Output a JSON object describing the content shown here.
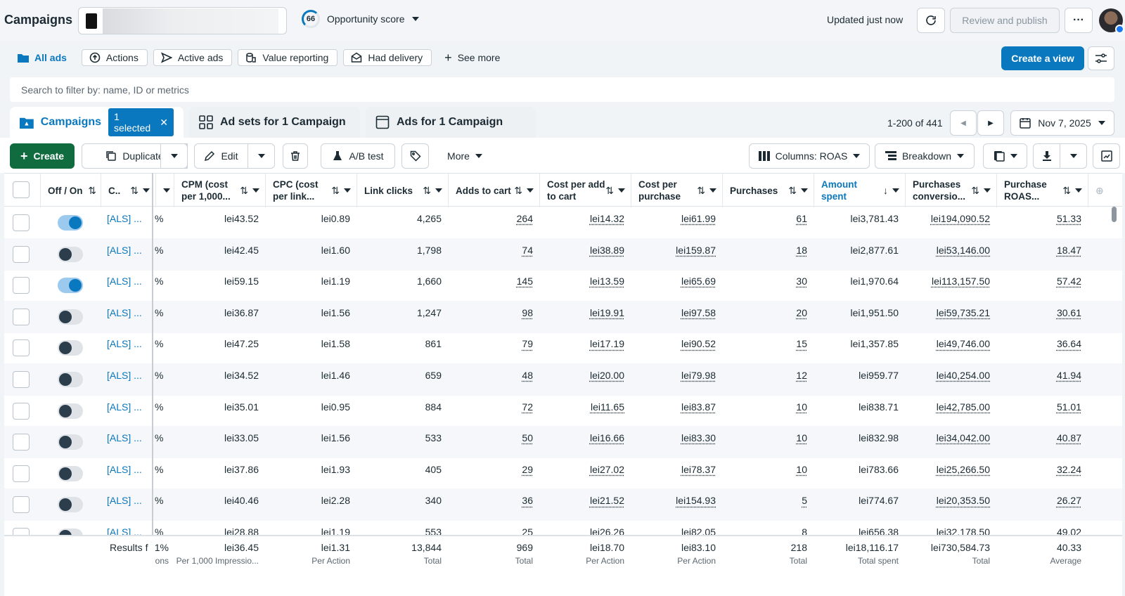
{
  "app": {
    "title": "Campaigns",
    "opportunity_score": "66",
    "opportunity_label": "Opportunity score",
    "updated": "Updated just now",
    "review_label": "Review and publish",
    "more_label": "···"
  },
  "views": {
    "items": [
      {
        "label": "All ads",
        "icon": "folder-icon",
        "active": true
      },
      {
        "label": "Actions",
        "icon": "arrow-up-circle-icon"
      },
      {
        "label": "Active ads",
        "icon": "send-icon"
      },
      {
        "label": "Value reporting",
        "icon": "coins-icon"
      },
      {
        "label": "Had delivery",
        "icon": "envelope-icon"
      }
    ],
    "see_more": "See more",
    "create_view": "Create a view"
  },
  "search": {
    "placeholder": "Search to filter by: name, ID or metrics"
  },
  "tabs": {
    "campaigns": "Campaigns",
    "selected": "1 selected",
    "ad_sets": "Ad sets for 1 Campaign",
    "ads": "Ads for 1 Campaign"
  },
  "pager": {
    "range": "1-200 of 441",
    "date": "Nov 7, 2025"
  },
  "toolbar": {
    "create": "Create",
    "duplicate": "Duplicate",
    "edit": "Edit",
    "ab_test": "A/B test",
    "more": "More",
    "columns": "Columns: ROAS",
    "breakdown": "Breakdown"
  },
  "columns": {
    "off_on": "Off / On",
    "name": "C..",
    "cpm": "CPM (cost per 1,000...",
    "cpc": "CPC (cost per link...",
    "link_clicks": "Link clicks",
    "adds_to_cart": "Adds to cart",
    "cost_per_atc": "Cost per add to cart",
    "cost_per_purchase": "Cost per purchase",
    "purchases": "Purchases",
    "amount_spent": "Amount spent",
    "purchase_conv": "Purchases conversio...",
    "roas": "Purchase ROAS..."
  },
  "rows": [
    {
      "on": true,
      "name": "[ALS] ...",
      "pct": "%",
      "cpm": "lei43.52",
      "cpc": "lei0.89",
      "clicks": "4,265",
      "atc": "264",
      "cpatc": "lei14.32",
      "cpp": "lei61.99",
      "purch": "61",
      "spent": "lei3,781.43",
      "conv": "lei194,090.52",
      "roas": "51.33"
    },
    {
      "on": false,
      "name": "[ALS] ...",
      "pct": "%",
      "cpm": "lei42.45",
      "cpc": "lei1.60",
      "clicks": "1,798",
      "atc": "74",
      "cpatc": "lei38.89",
      "cpp": "lei159.87",
      "purch": "18",
      "spent": "lei2,877.61",
      "conv": "lei53,146.00",
      "roas": "18.47"
    },
    {
      "on": true,
      "name": "[ALS] ...",
      "pct": "%",
      "cpm": "lei59.15",
      "cpc": "lei1.19",
      "clicks": "1,660",
      "atc": "145",
      "cpatc": "lei13.59",
      "cpp": "lei65.69",
      "purch": "30",
      "spent": "lei1,970.64",
      "conv": "lei113,157.50",
      "roas": "57.42"
    },
    {
      "on": false,
      "name": "[ALS] ...",
      "pct": "%",
      "cpm": "lei36.87",
      "cpc": "lei1.56",
      "clicks": "1,247",
      "atc": "98",
      "cpatc": "lei19.91",
      "cpp": "lei97.58",
      "purch": "20",
      "spent": "lei1,951.50",
      "conv": "lei59,735.21",
      "roas": "30.61"
    },
    {
      "on": false,
      "name": "[ALS] ...",
      "pct": "%",
      "cpm": "lei47.25",
      "cpc": "lei1.58",
      "clicks": "861",
      "atc": "79",
      "cpatc": "lei17.19",
      "cpp": "lei90.52",
      "purch": "15",
      "spent": "lei1,357.85",
      "conv": "lei49,746.00",
      "roas": "36.64"
    },
    {
      "on": false,
      "name": "[ALS] ...",
      "pct": "%",
      "cpm": "lei34.52",
      "cpc": "lei1.46",
      "clicks": "659",
      "atc": "48",
      "cpatc": "lei20.00",
      "cpp": "lei79.98",
      "purch": "12",
      "spent": "lei959.77",
      "conv": "lei40,254.00",
      "roas": "41.94"
    },
    {
      "on": false,
      "name": "[ALS] ...",
      "pct": "%",
      "cpm": "lei35.01",
      "cpc": "lei0.95",
      "clicks": "884",
      "atc": "72",
      "cpatc": "lei11.65",
      "cpp": "lei83.87",
      "purch": "10",
      "spent": "lei838.71",
      "conv": "lei42,785.00",
      "roas": "51.01"
    },
    {
      "on": false,
      "name": "[ALS] ...",
      "pct": "%",
      "cpm": "lei33.05",
      "cpc": "lei1.56",
      "clicks": "533",
      "atc": "50",
      "cpatc": "lei16.66",
      "cpp": "lei83.30",
      "purch": "10",
      "spent": "lei832.98",
      "conv": "lei34,042.00",
      "roas": "40.87"
    },
    {
      "on": false,
      "name": "[ALS] ...",
      "pct": "%",
      "cpm": "lei37.86",
      "cpc": "lei1.93",
      "clicks": "405",
      "atc": "29",
      "cpatc": "lei27.02",
      "cpp": "lei78.37",
      "purch": "10",
      "spent": "lei783.66",
      "conv": "lei25,266.50",
      "roas": "32.24"
    },
    {
      "on": false,
      "name": "[ALS] ...",
      "pct": "%",
      "cpm": "lei40.46",
      "cpc": "lei2.28",
      "clicks": "340",
      "atc": "36",
      "cpatc": "lei21.52",
      "cpp": "lei154.93",
      "purch": "5",
      "spent": "lei774.67",
      "conv": "lei20,353.50",
      "roas": "26.27"
    },
    {
      "on": false,
      "name": "[ALS] ...",
      "pct": "%",
      "cpm": "lei28.88",
      "cpc": "lei1.19",
      "clicks": "553",
      "atc": "25",
      "cpatc": "lei26.26",
      "cpp": "lei82.05",
      "purch": "8",
      "spent": "lei656.38",
      "conv": "lei32,178.50",
      "roas": "49.02"
    }
  ],
  "totals": {
    "label": "Results f",
    "pct": "1%",
    "pct_sub": "ons",
    "cpm": "lei36.45",
    "cpm_sub": "Per 1,000 Impressio...",
    "cpc": "lei1.31",
    "cpc_sub": "Per Action",
    "clicks": "13,844",
    "clicks_sub": "Total",
    "atc": "969",
    "atc_sub": "Total",
    "cpatc": "lei18.70",
    "cpatc_sub": "Per Action",
    "cpp": "lei83.10",
    "cpp_sub": "Per Action",
    "purch": "218",
    "purch_sub": "Total",
    "spent": "lei18,116.17",
    "spent_sub": "Total spent",
    "conv": "lei730,584.73",
    "conv_sub": "Total",
    "roas": "40.33",
    "roas_sub": "Average"
  }
}
